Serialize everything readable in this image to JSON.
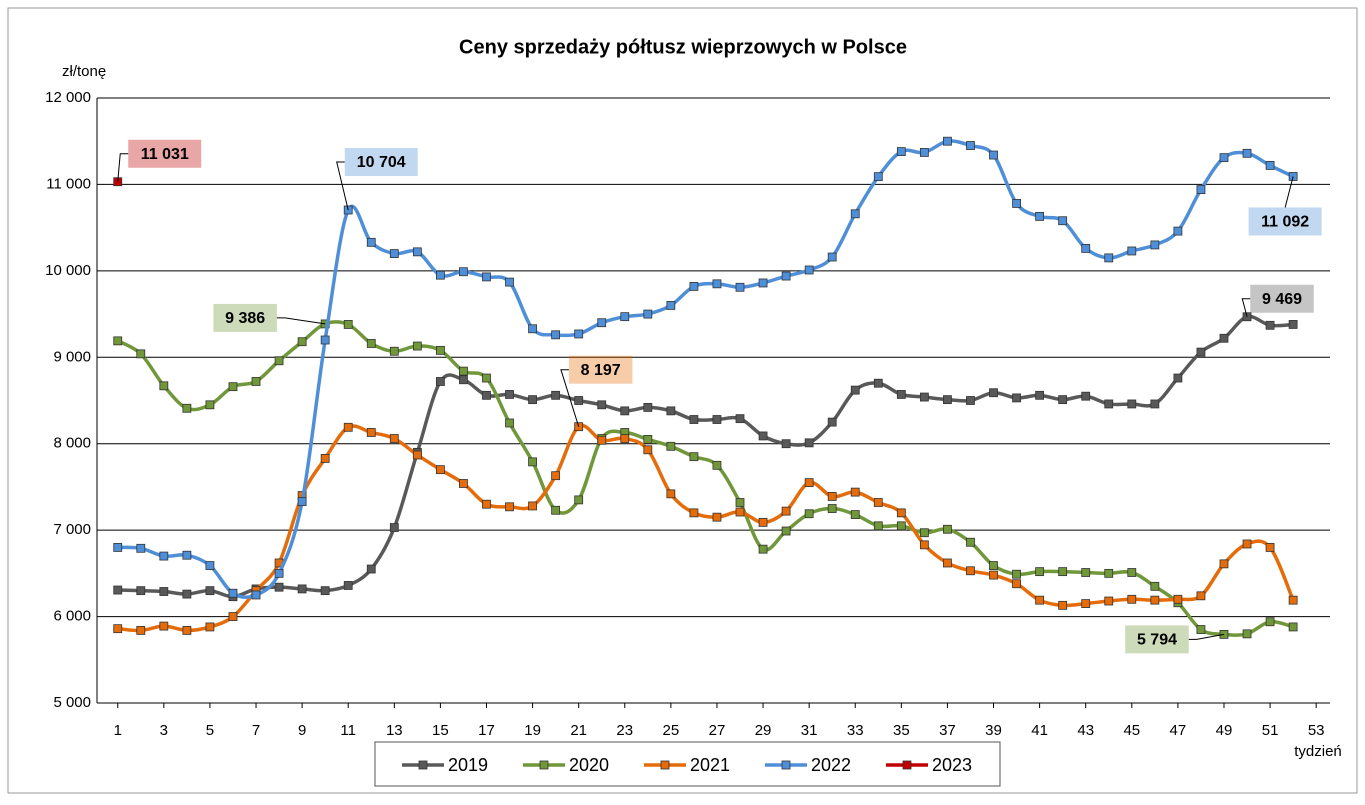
{
  "chart_data": {
    "type": "line",
    "title": "Ceny sprzedaży półtusz wieprzowych w Polsce",
    "y_label": "zł/tonę",
    "x_label": "tydzień",
    "x": [
      1,
      2,
      3,
      4,
      5,
      6,
      7,
      8,
      9,
      10,
      11,
      12,
      13,
      14,
      15,
      16,
      17,
      18,
      19,
      20,
      21,
      22,
      23,
      24,
      25,
      26,
      27,
      28,
      29,
      30,
      31,
      32,
      33,
      34,
      35,
      36,
      37,
      38,
      39,
      40,
      41,
      42,
      43,
      44,
      45,
      46,
      47,
      48,
      49,
      50,
      51,
      52
    ],
    "series": [
      {
        "name": "2019",
        "color": "#595959",
        "values": [
          6307,
          6300,
          6290,
          6260,
          6300,
          6230,
          6320,
          6340,
          6320,
          6300,
          6360,
          6550,
          7030,
          7900,
          8720,
          8740,
          8560,
          8570,
          8510,
          8560,
          8500,
          8450,
          8380,
          8420,
          8380,
          8280,
          8280,
          8290,
          8090,
          8000,
          8010,
          8250,
          8620,
          8700,
          8570,
          8540,
          8510,
          8500,
          8590,
          8530,
          8560,
          8510,
          8550,
          8460,
          8460,
          8460,
          8760,
          9060,
          9220,
          9469,
          9370,
          9380
        ],
        "value_labels": [
          null,
          null,
          null,
          null,
          null,
          null,
          null,
          null,
          null,
          null,
          null,
          null,
          null,
          null,
          null,
          null,
          null,
          null,
          null,
          null,
          null,
          null,
          null,
          null,
          null,
          null,
          null,
          null,
          null,
          null,
          null,
          null,
          null,
          null,
          null,
          null,
          null,
          null,
          null,
          null,
          null,
          null,
          null,
          null,
          null,
          null,
          null,
          null,
          null,
          "9 469",
          null,
          null
        ]
      },
      {
        "name": "2020",
        "color": "#70973a",
        "values": [
          9190,
          9040,
          8670,
          8410,
          8450,
          8660,
          8720,
          8960,
          9180,
          9386,
          9380,
          9160,
          9070,
          9130,
          9080,
          8840,
          8760,
          8240,
          7790,
          7230,
          7350,
          8060,
          8130,
          8050,
          7970,
          7850,
          7750,
          7320,
          6780,
          6990,
          7190,
          7250,
          7180,
          7050,
          7050,
          6970,
          7010,
          6860,
          6590,
          6490,
          6520,
          6520,
          6510,
          6500,
          6510,
          6350,
          6160,
          5850,
          5794,
          5800,
          5940,
          5880
        ],
        "value_labels": [
          null,
          null,
          null,
          null,
          null,
          null,
          null,
          null,
          null,
          "9 386",
          null,
          null,
          null,
          null,
          null,
          null,
          null,
          null,
          null,
          null,
          null,
          null,
          null,
          null,
          null,
          null,
          null,
          null,
          null,
          null,
          null,
          null,
          null,
          null,
          null,
          null,
          null,
          null,
          null,
          null,
          null,
          null,
          null,
          null,
          null,
          null,
          null,
          null,
          "5 794",
          null,
          null,
          null
        ]
      },
      {
        "name": "2021",
        "color": "#e46c0a",
        "values": [
          5860,
          5840,
          5890,
          5840,
          5880,
          6000,
          6300,
          6620,
          7400,
          7830,
          8190,
          8130,
          8060,
          7870,
          7700,
          7540,
          7300,
          7270,
          7280,
          7630,
          8197,
          8040,
          8060,
          7930,
          7420,
          7200,
          7150,
          7210,
          7090,
          7220,
          7550,
          7390,
          7440,
          7320,
          7200,
          6830,
          6620,
          6530,
          6480,
          6380,
          6190,
          6130,
          6150,
          6180,
          6200,
          6190,
          6200,
          6240,
          6610,
          6840,
          6800,
          6190
        ],
        "value_labels": [
          null,
          null,
          null,
          null,
          null,
          null,
          null,
          null,
          null,
          null,
          null,
          null,
          null,
          null,
          null,
          null,
          null,
          null,
          null,
          null,
          "8 197",
          null,
          null,
          null,
          null,
          null,
          null,
          null,
          null,
          null,
          null,
          null,
          null,
          null,
          null,
          null,
          null,
          null,
          null,
          null,
          null,
          null,
          null,
          null,
          null,
          null,
          null,
          null,
          null,
          null,
          null,
          null
        ]
      },
      {
        "name": "2022",
        "color": "#4f8fd8",
        "values": [
          6800,
          6790,
          6700,
          6710,
          6590,
          6270,
          6250,
          6500,
          7330,
          9200,
          10704,
          10330,
          10200,
          10220,
          9950,
          9990,
          9930,
          9870,
          9330,
          9260,
          9270,
          9400,
          9470,
          9500,
          9600,
          9820,
          9850,
          9810,
          9860,
          9940,
          10010,
          10160,
          10660,
          11090,
          11380,
          11370,
          11500,
          11450,
          11340,
          10780,
          10630,
          10580,
          10260,
          10150,
          10230,
          10300,
          10460,
          10940,
          11310,
          11360,
          11220,
          11092
        ],
        "value_labels": [
          null,
          null,
          null,
          null,
          null,
          null,
          null,
          null,
          null,
          null,
          "10 704",
          null,
          null,
          null,
          null,
          null,
          null,
          null,
          null,
          null,
          null,
          null,
          null,
          null,
          null,
          null,
          null,
          null,
          null,
          null,
          null,
          null,
          null,
          null,
          null,
          null,
          null,
          null,
          null,
          null,
          null,
          null,
          null,
          null,
          null,
          null,
          null,
          null,
          null,
          null,
          null,
          "11 092"
        ]
      },
      {
        "name": "2023",
        "color": "#c00000",
        "values": [
          11031,
          null,
          null,
          null,
          null,
          null,
          null,
          null,
          null,
          null,
          null,
          null,
          null,
          null,
          null,
          null,
          null,
          null,
          null,
          null,
          null,
          null,
          null,
          null,
          null,
          null,
          null,
          null,
          null,
          null,
          null,
          null,
          null,
          null,
          null,
          null,
          null,
          null,
          null,
          null,
          null,
          null,
          null,
          null,
          null,
          null,
          null,
          null,
          null,
          null,
          null,
          null
        ],
        "value_labels": [
          "11 031",
          null,
          null,
          null,
          null,
          null,
          null,
          null,
          null,
          null,
          null,
          null,
          null,
          null,
          null,
          null,
          null,
          null,
          null,
          null,
          null,
          null,
          null,
          null,
          null,
          null,
          null,
          null,
          null,
          null,
          null,
          null,
          null,
          null,
          null,
          null,
          null,
          null,
          null,
          null,
          null,
          null,
          null,
          null,
          null,
          null,
          null,
          null,
          null,
          null,
          null,
          null
        ]
      }
    ],
    "xlim": [
      0.1,
      53.6
    ],
    "xticks": [
      1,
      3,
      5,
      7,
      9,
      11,
      13,
      15,
      17,
      19,
      21,
      23,
      25,
      27,
      29,
      31,
      33,
      35,
      37,
      39,
      41,
      43,
      45,
      47,
      49,
      51,
      53
    ],
    "ylim": [
      5000,
      12000
    ],
    "yticks": [
      {
        "value": 5000,
        "label": "5 000"
      },
      {
        "value": 6000,
        "label": "6 000"
      },
      {
        "value": 7000,
        "label": "7 000"
      },
      {
        "value": 8000,
        "label": "8 000"
      },
      {
        "value": 9000,
        "label": "9 000"
      },
      {
        "value": 10000,
        "label": "10 000"
      },
      {
        "value": 11000,
        "label": "11 000"
      },
      {
        "value": 12000,
        "label": "12 000"
      }
    ],
    "grid": true,
    "legend": "bottom"
  }
}
